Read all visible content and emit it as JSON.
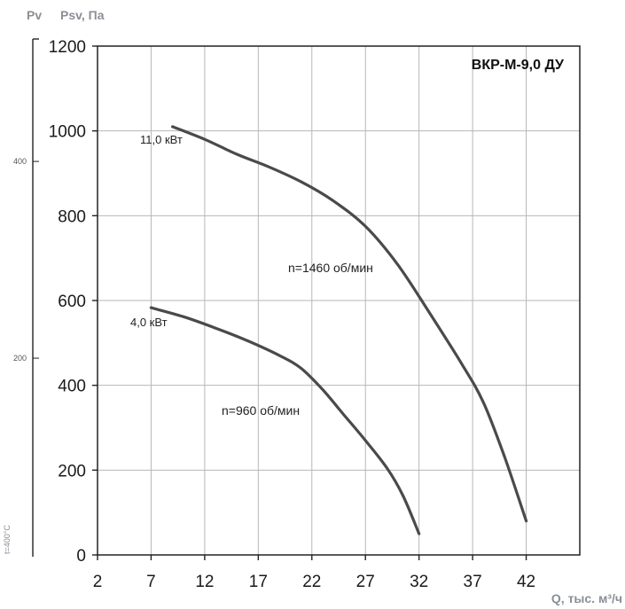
{
  "chart_data": {
    "type": "line",
    "title": "ВКР-М-9,0 ДУ",
    "xlabel": "Q, тыс. м³/ч",
    "ylabel": "Psv, Па",
    "pv_label": "Pv",
    "xlim": [
      2,
      47
    ],
    "ylim": [
      0,
      1200
    ],
    "xticks": [
      2,
      7,
      12,
      17,
      22,
      27,
      32,
      37,
      42
    ],
    "yticks": [
      0,
      200,
      400,
      600,
      800,
      1000,
      1200
    ],
    "grid": true,
    "pv_ticks": [
      {
        "label": "400",
        "value": 400
      },
      {
        "label": "200",
        "value": 200
      }
    ],
    "temperature_note": "t=400°C",
    "series": [
      {
        "name": "n=1460 об/мин",
        "power": "11,0 кВт",
        "x": [
          9,
          12,
          15,
          18,
          21,
          24,
          27,
          30,
          33,
          36,
          38,
          40,
          42
        ],
        "y": [
          1010,
          980,
          945,
          915,
          880,
          835,
          775,
          685,
          570,
          450,
          360,
          230,
          80
        ]
      },
      {
        "name": "n=960 об/мин",
        "power": "4,0 кВт",
        "x": [
          7,
          10,
          13,
          16,
          19,
          21,
          23,
          25,
          27,
          29,
          30.5,
          32
        ],
        "y": [
          583,
          562,
          535,
          505,
          470,
          440,
          390,
          330,
          270,
          205,
          140,
          50
        ]
      }
    ],
    "color": "#4a4a4a",
    "grid_color": "#b7b7b7"
  }
}
